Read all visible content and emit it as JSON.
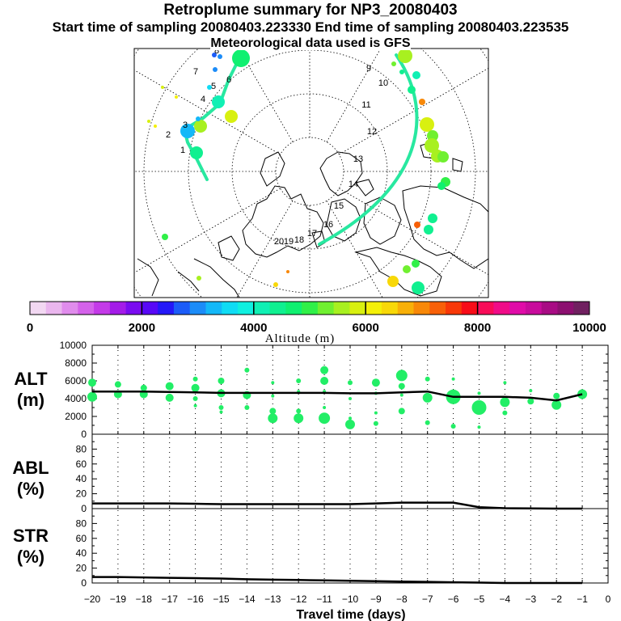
{
  "header": {
    "title": "Retroplume summary for NP3_20080403",
    "sampling": "Start time of sampling 20080403.223330     End time of sampling 20080403.223535",
    "met": "Meteorological data used is GFS"
  },
  "colorbar": {
    "colors": [
      "#f2d8f2",
      "#eab6ee",
      "#e08cec",
      "#d462ea",
      "#c43ae8",
      "#a41ce8",
      "#7a0cf0",
      "#5808f6",
      "#2418f8",
      "#1c5cf8",
      "#1c8cf8",
      "#14b8f8",
      "#10dcf4",
      "#10f0e0",
      "#10f0b4",
      "#10f090",
      "#10f070",
      "#30f048",
      "#70f030",
      "#a8f020",
      "#d8f010",
      "#f4f008",
      "#f8d808",
      "#f8b008",
      "#f88808",
      "#f86008",
      "#f83808",
      "#f80c18",
      "#f80c58",
      "#f00c88",
      "#e00ca8",
      "#c80c9c",
      "#a80c84",
      "#8c1070",
      "#702060"
    ],
    "tick_labels": [
      "0",
      "2000",
      "4000",
      "6000",
      "8000",
      "10000"
    ],
    "label": "Altitude (m)"
  },
  "map": {
    "day_labels": [
      "1",
      "2",
      "3",
      "4",
      "5",
      "6",
      "7",
      "8",
      "9",
      "10",
      "11",
      "12",
      "13",
      "14",
      "15",
      "16",
      "17",
      "18",
      "19",
      "20"
    ]
  },
  "chart_data": [
    {
      "type": "scatter",
      "title": "ALT",
      "ylabel": "ALT (m)",
      "ylim": [
        0,
        10000
      ],
      "yticks": [
        "10000",
        "8000",
        "6000",
        "4000",
        "2000",
        "0"
      ],
      "x": [
        -20,
        -19,
        -18,
        -17,
        -16,
        -15,
        -14,
        -13,
        -12,
        -11,
        -10,
        -9,
        -8,
        -7,
        -6,
        -5,
        -4,
        -3,
        -2,
        -1
      ],
      "series": [
        {
          "name": "mean altitude",
          "kind": "line",
          "values": [
            4800,
            4800,
            4800,
            4750,
            4700,
            4650,
            4650,
            4650,
            4650,
            4650,
            4600,
            4600,
            4700,
            4800,
            4200,
            4200,
            4200,
            4100,
            3800,
            4500
          ]
        },
        {
          "name": "cluster centroids",
          "kind": "scatter",
          "points": [
            [
              -20,
              5800
            ],
            [
              -20,
              4200
            ],
            [
              -19,
              5600
            ],
            [
              -19,
              4500
            ],
            [
              -18,
              5200
            ],
            [
              -18,
              4500
            ],
            [
              -17,
              5400
            ],
            [
              -17,
              4100
            ],
            [
              -16,
              6200
            ],
            [
              -16,
              5200
            ],
            [
              -16,
              4000
            ],
            [
              -16,
              3200
            ],
            [
              -15,
              6000
            ],
            [
              -15,
              4600
            ],
            [
              -15,
              3000
            ],
            [
              -15,
              2500
            ],
            [
              -14,
              7200
            ],
            [
              -14,
              4400
            ],
            [
              -14,
              3000
            ],
            [
              -13,
              5800
            ],
            [
              -13,
              4300
            ],
            [
              -13,
              2600
            ],
            [
              -13,
              1800
            ],
            [
              -12,
              6000
            ],
            [
              -12,
              4800
            ],
            [
              -12,
              2600
            ],
            [
              -12,
              1800
            ],
            [
              -11,
              7200
            ],
            [
              -11,
              6000
            ],
            [
              -11,
              4800
            ],
            [
              -11,
              3000
            ],
            [
              -11,
              1800
            ],
            [
              -10,
              5800
            ],
            [
              -10,
              4000
            ],
            [
              -10,
              1800
            ],
            [
              -10,
              1100
            ],
            [
              -9,
              5800
            ],
            [
              -9,
              4600
            ],
            [
              -9,
              2400
            ],
            [
              -9,
              1200
            ],
            [
              -8,
              6600
            ],
            [
              -8,
              5400
            ],
            [
              -8,
              4400
            ],
            [
              -8,
              2600
            ],
            [
              -7,
              6200
            ],
            [
              -7,
              4100
            ],
            [
              -7,
              1300
            ],
            [
              -6,
              6200
            ],
            [
              -6,
              4200
            ],
            [
              -6,
              900
            ],
            [
              -5,
              4600
            ],
            [
              -5,
              3000
            ],
            [
              -5,
              800
            ],
            [
              -4,
              5800
            ],
            [
              -4,
              3600
            ],
            [
              -4,
              2400
            ],
            [
              -3,
              4900
            ],
            [
              -3,
              3700
            ],
            [
              -2,
              4300
            ],
            [
              -2,
              3300
            ],
            [
              -1,
              4500
            ]
          ]
        }
      ]
    },
    {
      "type": "line",
      "title": "ABL",
      "ylabel": "ABL (%)",
      "ylim": [
        0,
        100
      ],
      "yticks": [
        "80",
        "60",
        "40",
        "20",
        "0"
      ],
      "x": [
        -20,
        -19,
        -18,
        -17,
        -16,
        -15,
        -14,
        -13,
        -12,
        -11,
        -10,
        -9,
        -8,
        -7,
        -6,
        -5,
        -4,
        -3,
        -2,
        -1
      ],
      "values": [
        7,
        7,
        7,
        7,
        6.5,
        6,
        6,
        6,
        6,
        6,
        6,
        7,
        8,
        8,
        8,
        2,
        0.5,
        0.2,
        0,
        0
      ]
    },
    {
      "type": "line",
      "title": "STR",
      "ylabel": "STR (%)",
      "ylim": [
        0,
        100
      ],
      "yticks": [
        "80",
        "60",
        "40",
        "20",
        "0"
      ],
      "x": [
        -20,
        -19,
        -18,
        -17,
        -16,
        -15,
        -14,
        -13,
        -12,
        -11,
        -10,
        -9,
        -8,
        -7,
        -6,
        -5,
        -4,
        -3,
        -2,
        -1
      ],
      "values": [
        8,
        8,
        7.5,
        7,
        6.5,
        6,
        5,
        4.5,
        4,
        3.5,
        3,
        2.5,
        2,
        1.5,
        1,
        0.5,
        0,
        0,
        0,
        0
      ]
    }
  ],
  "x_axis": {
    "label": "Travel time (days)",
    "xlim": [
      -20,
      0
    ],
    "tick_labels": [
      "−20",
      "−19",
      "−18",
      "−17",
      "−16",
      "−15",
      "−14",
      "−13",
      "−12",
      "−11",
      "−10",
      "−9",
      "−8",
      "−7",
      "−6",
      "−5",
      "−4",
      "−3",
      "−2",
      "−1",
      "0"
    ]
  }
}
